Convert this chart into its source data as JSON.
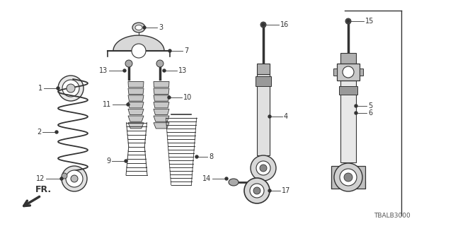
{
  "bg_color": "#ffffff",
  "diagram_code": "TBALB3000",
  "line_color": "#333333",
  "label_fontsize": 7.0
}
